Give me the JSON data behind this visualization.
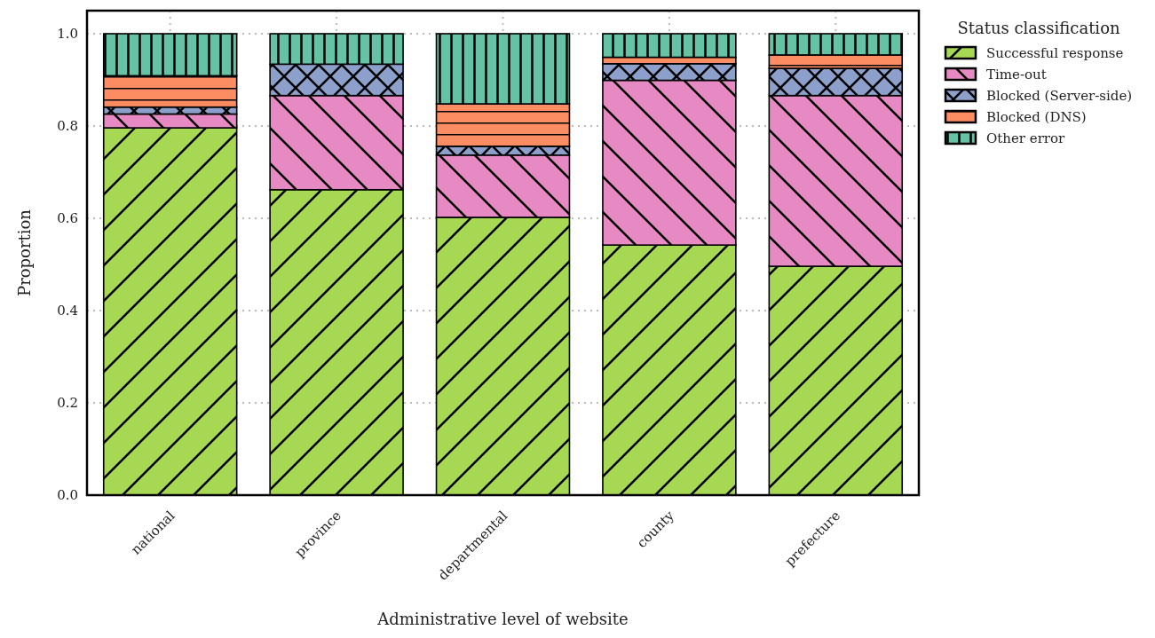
{
  "chart_data": {
    "type": "bar",
    "stacked": true,
    "xlabel": "Administrative level of website",
    "ylabel": "Proportion",
    "legend_title": "Status classification",
    "legend": "top right",
    "grid": true,
    "categories": [
      "national",
      "province",
      "departmental",
      "county",
      "prefecture"
    ],
    "ylim": [
      0,
      1.05
    ],
    "yticks": [
      {
        "value": 0,
        "label": "0.0"
      },
      {
        "value": 0.2,
        "label": "0.2"
      },
      {
        "value": 0.4,
        "label": "0.4"
      },
      {
        "value": 0.6,
        "label": "0.6"
      },
      {
        "value": 0.8,
        "label": "0.8"
      },
      {
        "value": 1,
        "label": "1.0"
      }
    ],
    "series": [
      {
        "name": "Successful response",
        "color": "#a6d854",
        "values": [
          0.796,
          0.662,
          0.602,
          0.542,
          0.496
        ]
      },
      {
        "name": "Time-out",
        "color": "#e78ac3",
        "values": [
          0.03,
          0.204,
          0.135,
          0.357,
          0.37
        ]
      },
      {
        "name": "Blocked (Server-side)",
        "color": "#8da0cb",
        "values": [
          0.015,
          0.068,
          0.019,
          0.036,
          0.059
        ]
      },
      {
        "name": "Blocked (DNS)",
        "color": "#fc8d62",
        "values": [
          0.068,
          null,
          0.092,
          0.014,
          0.029
        ]
      },
      {
        "name": "Other error",
        "color": "#66c2a5",
        "values": [
          0.091,
          0.066,
          0.152,
          0.051,
          0.046
        ]
      }
    ]
  }
}
